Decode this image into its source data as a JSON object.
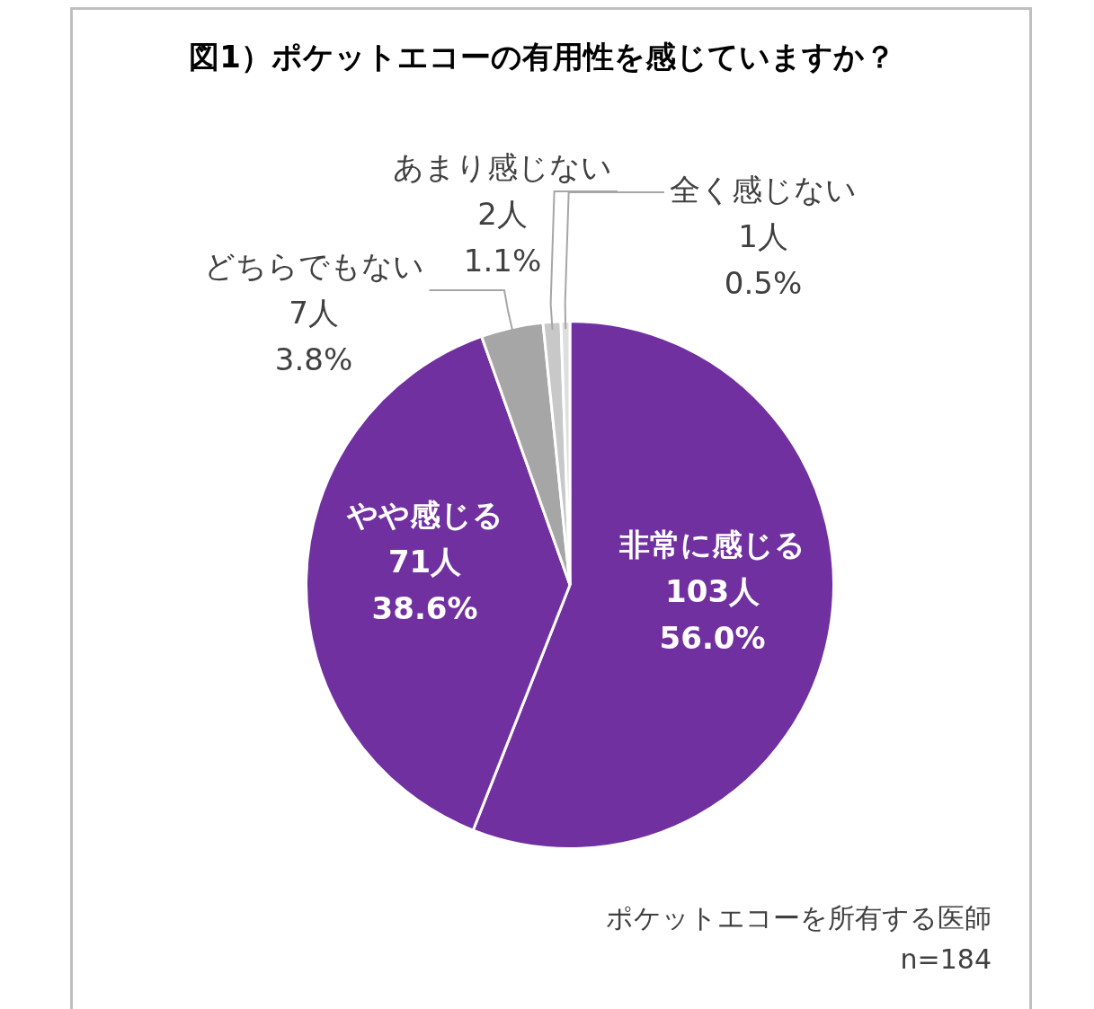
{
  "chart_data": {
    "type": "pie",
    "title": "図1）ポケットエコーの有用性を感じていますか？",
    "categories": [
      "非常に感じる",
      "やや感じる",
      "どちらでもない",
      "あまり感じない",
      "全く感じない"
    ],
    "values": [
      103,
      71,
      7,
      2,
      1
    ],
    "colors": [
      "#7030a0",
      "#7030a0",
      "#a6a6a6",
      "#c8c8c8",
      "#dedede"
    ],
    "value_labels": [
      "103人\n56.0%",
      "71人\n38.6%",
      "7人\n3.8%",
      "2人\n1.1%",
      "1人\n0.5%"
    ],
    "annotations": [
      "ポケットエコーを所有する医師",
      "n=184"
    ],
    "legend": false
  }
}
